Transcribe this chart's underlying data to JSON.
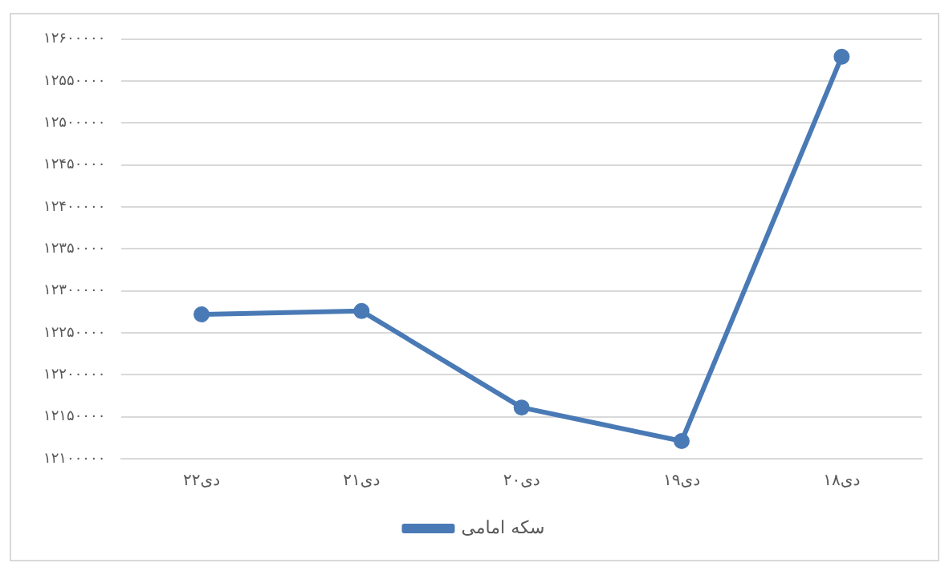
{
  "chart_data": {
    "type": "line",
    "categories": [
      "۲۲دی",
      "۲۱دی",
      "۲۰دی",
      "۱۹دی",
      "۱۸دی"
    ],
    "series": [
      {
        "name": "سکه امامی",
        "color": "#4a7ab5",
        "values": [
          12272000,
          12276000,
          12161000,
          12121000,
          12579000
        ]
      }
    ],
    "ylim": [
      12100000,
      12600000
    ],
    "yticks": [
      {
        "value": 12100000,
        "label": "۱۲۱۰۰۰۰۰"
      },
      {
        "value": 12150000,
        "label": "۱۲۱۵۰۰۰۰"
      },
      {
        "value": 12200000,
        "label": "۱۲۲۰۰۰۰۰"
      },
      {
        "value": 12250000,
        "label": "۱۲۲۵۰۰۰۰"
      },
      {
        "value": 12300000,
        "label": "۱۲۳۰۰۰۰۰"
      },
      {
        "value": 12350000,
        "label": "۱۲۳۵۰۰۰۰"
      },
      {
        "value": 12400000,
        "label": "۱۲۴۰۰۰۰۰"
      },
      {
        "value": 12450000,
        "label": "۱۲۴۵۰۰۰۰"
      },
      {
        "value": 12500000,
        "label": "۱۲۵۰۰۰۰۰"
      },
      {
        "value": 12550000,
        "label": "۱۲۵۵۰۰۰۰"
      },
      {
        "value": 12600000,
        "label": "۱۲۶۰۰۰۰۰"
      }
    ],
    "grid": "y",
    "legend": "bottom",
    "marker": "circle",
    "line_style": "solid"
  }
}
